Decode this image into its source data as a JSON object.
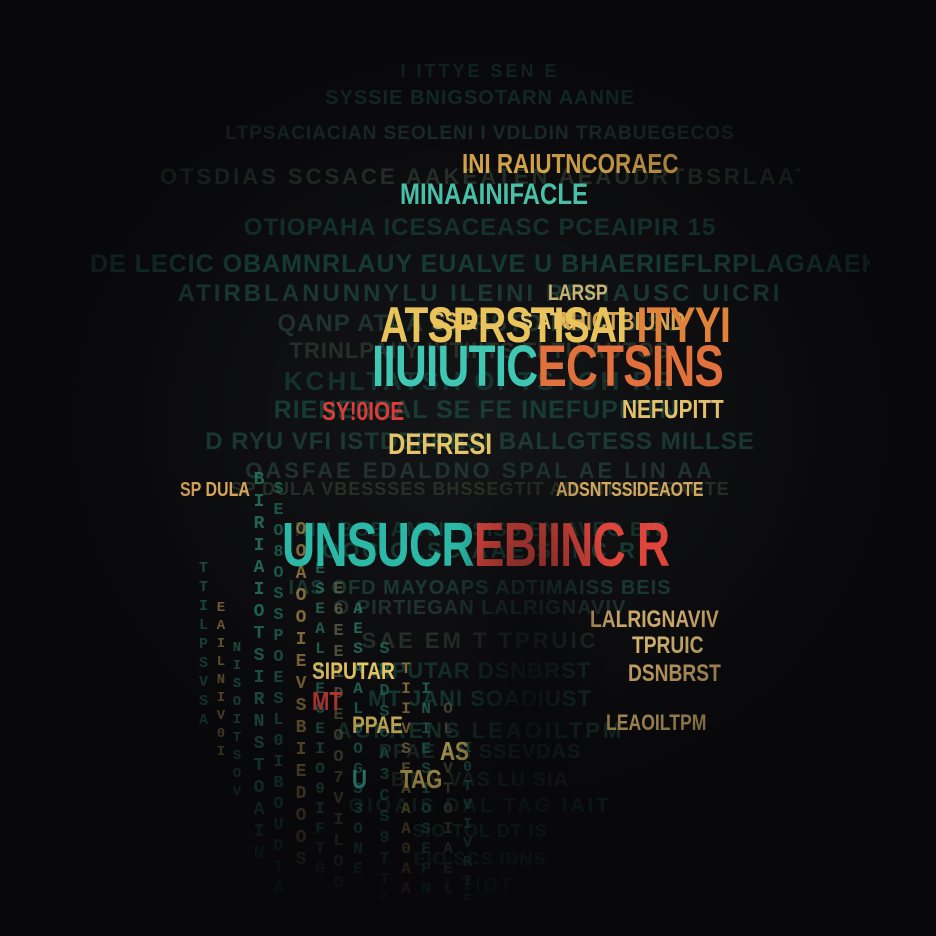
{
  "headline_rows": [
    {
      "key": "l1",
      "segments": [
        {
          "text": "ATSPRSTISAI",
          "color": "#e9c45a"
        },
        {
          "text": " ITYYI",
          "color": "#e0823a"
        }
      ]
    },
    {
      "key": "l2",
      "segments": [
        {
          "text": "IIUIUTIC",
          "color": "#3fc7b4"
        },
        {
          "text": "ECTSINS",
          "color": "#e2703c"
        }
      ]
    },
    {
      "key": "l3",
      "segments": [
        {
          "text": "UNSUCR",
          "color": "#2bb8a6"
        },
        {
          "text": "EBIINC R",
          "color": "#e0453c"
        }
      ]
    }
  ],
  "accent_labels": [
    {
      "text": "SY!0IOE",
      "color": "#d83d38"
    },
    {
      "text": "NEFUPITT",
      "color": "#e5c06a"
    },
    {
      "text": "SSIR",
      "color": "#e4b95c"
    },
    {
      "text": "S ATO",
      "color": "#e6c96a"
    },
    {
      "text": "MINAAINIFACLE",
      "color": "#48c0a7"
    },
    {
      "text": "INI RAIUTNCORAEC",
      "color": "#d9a84c"
    },
    {
      "text": "DEFRESI",
      "color": "#e3c468"
    },
    {
      "text": "AHICTBIUND",
      "color": "#d7a552"
    },
    {
      "text": "LARSP",
      "color": "#c9b174"
    },
    {
      "text": "SIPUTAR",
      "color": "#e7c564"
    },
    {
      "text": "MT",
      "color": "#d03c36"
    },
    {
      "text": "PPAE",
      "color": "#e6c862"
    },
    {
      "text": "AS",
      "color": "#e7cc66"
    },
    {
      "text": "U",
      "color": "#3cc2ae"
    },
    {
      "text": "TAG",
      "color": "#e5c864"
    },
    {
      "text": "SP DULA",
      "color": "#d6a45a"
    },
    {
      "text": "ADSNTSSIDEAOTE",
      "color": "#d4a85c"
    },
    {
      "text": "LALRIGNAVIV",
      "color": "#c9a66a"
    },
    {
      "text": "TPRUIC",
      "color": "#d1b26c"
    },
    {
      "text": "DSNBRST",
      "color": "#cba669"
    },
    {
      "text": "LEAOILTPM",
      "color": "#d3b06a"
    }
  ],
  "background_rows": [
    "I  ITTYE  SEN  E",
    "SYSSIE  BNIGSOTARN  AANNE",
    "LTPSACIACIAN  SEOLENI  I  VDLDIN  TRABUEGECOS",
    "OTSDIAS  SCSACE  AAKEATEN  AEAUDRTBSRLAAT",
    "OTIOPAHA  ICESACEASC  PCEAIPIR  15",
    "DE  LECIC  OBAMNRLAUY  EUALVE  U  BHAERIEFLRPLAGAAEK",
    "ATIRBLANUNNYLU  ILEINI  RPFIAUSC  UICRI",
    "QANP  ATAA  SSIRSTO  DDIA  OISU",
    "TRINLPAIIY  IYTIIITS  TI  TU  AUTOS",
    "KCHLTATSH  OI  TS  IOH  RR",
    "RIENERRAL  SE  FE  INEFUPITTNI",
    "D  RYU  VFI  ISTDEFRESI  BALLGTESS  MILLSE",
    "OASFAE  EDALDNO  SPAL  AE  LIN  AA",
    "SP  DULA  VBESSSES  BHSSEGTIT  ADSNTSSIDEAOTE",
    "NIN  BOE  AMVITYSISS  EN  AVEO  BIT",
    "OOC  OLSC  AAEIS  INC  R",
    "IAS  OFD  MAYOAPS  ADTIMAISS  BEIS",
    "O  PIRTIEGAN  LALRIGNAVIV",
    "SAE  EM  T  TPRUIC",
    "SIPUTAR  DSNBRST",
    "MT  JANI  SOADIUST",
    "ACPAENS  LEAOILTPM",
    "PPAE  AN  SSEVDAS",
    "BT  N  VAS  LU  SIA",
    "OIOAIS  DAL  TAG  IAIT",
    "SIO  TOL  DT  IS",
    "EIO  SCS  IDNS",
    "I  TIOT"
  ],
  "drip_columns": [
    "BIRIAIOTSIRNSTOAIN",
    "SEO8OSSPOESL0IBOUDTA",
    "OOAOOIEVSBIEDOOS",
    "ESEAL1EGEIO9IFTG",
    "E6EE1DEOO7VILOO",
    "AESAALOOGS3ONE",
    "SPDSOA3CS9TTG",
    "TIIVSEAAA0AA",
    "INIESIOSEPNO",
    "OLAVTOIAELI",
    "I0TVIVRIE",
    "TTILPSVSA",
    "EAILNIV0I",
    "NISOITSOV"
  ]
}
